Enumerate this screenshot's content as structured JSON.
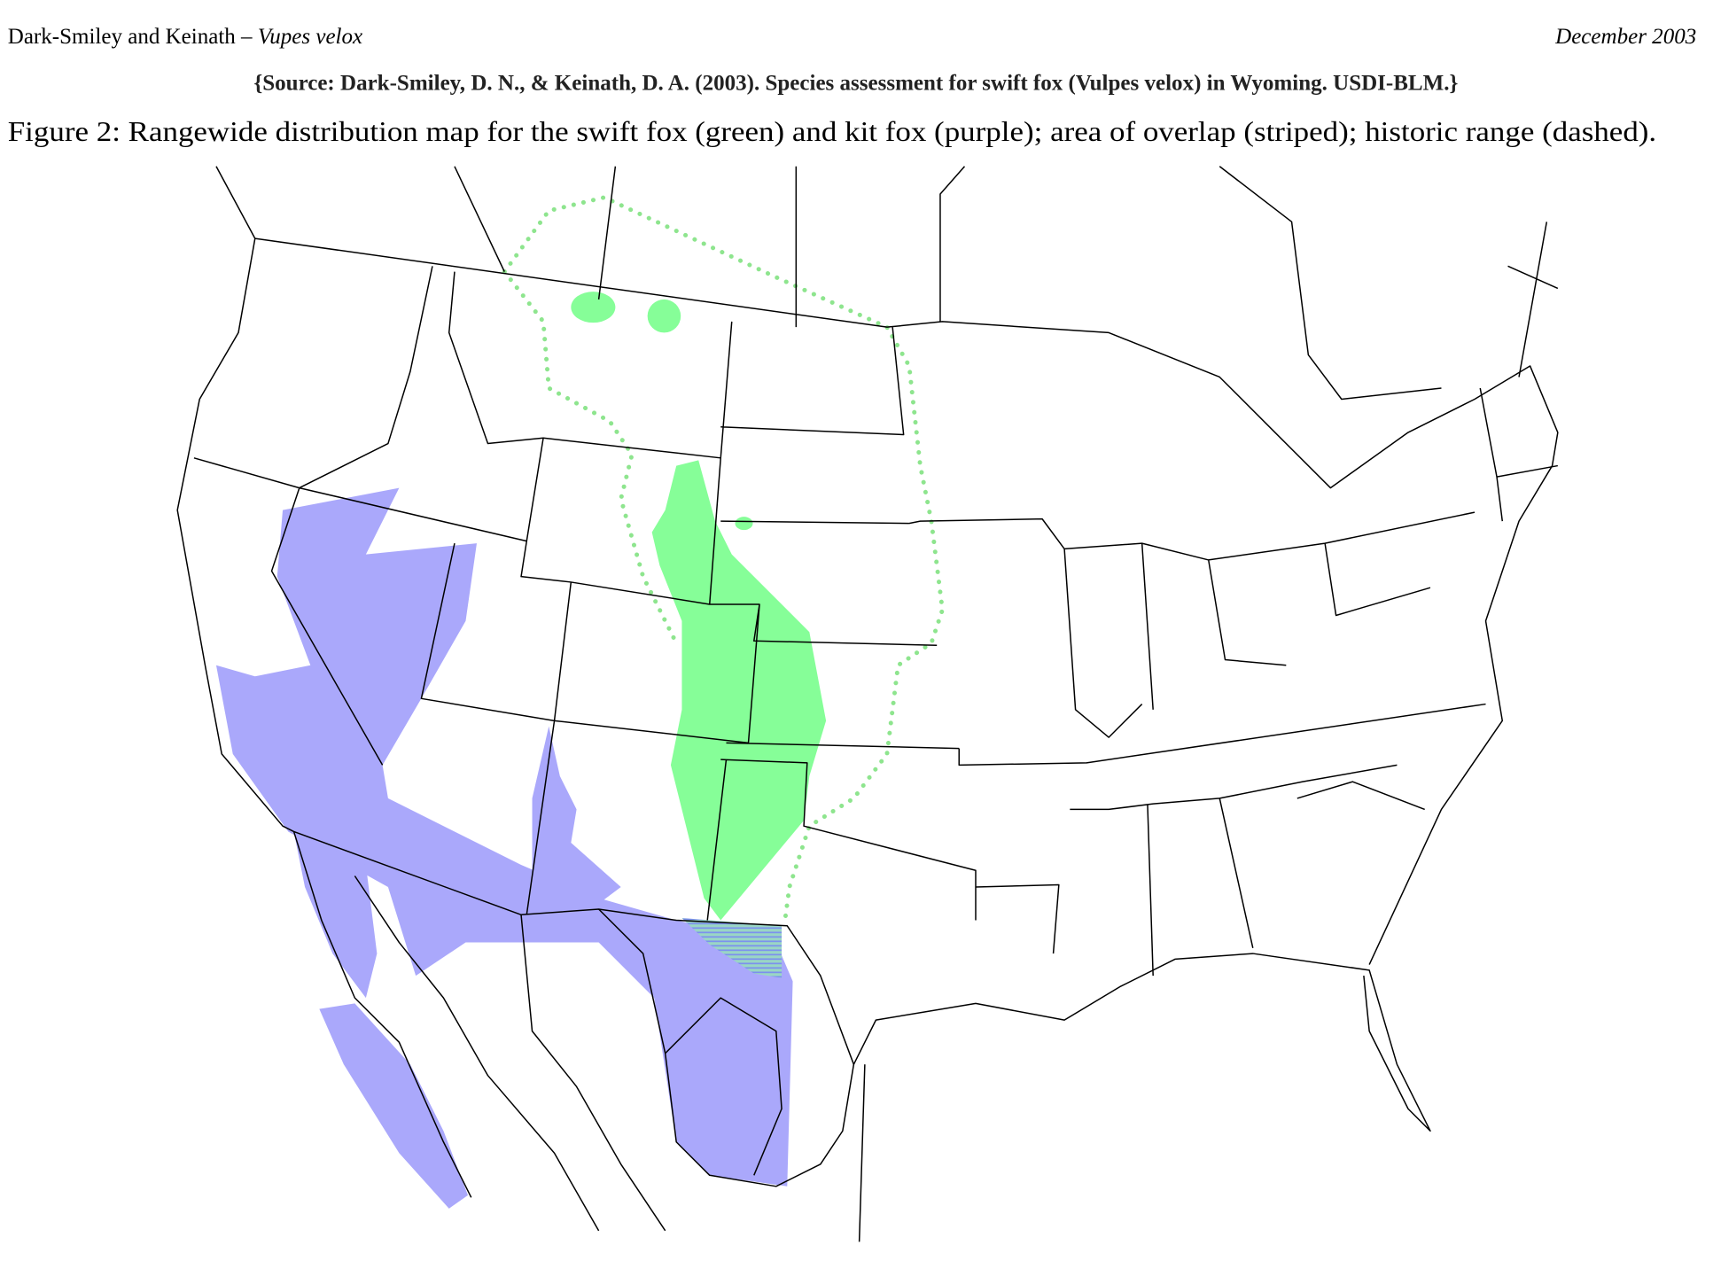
{
  "header": {
    "authors": "Dark-Smiley and Keinath –",
    "species": "Vupes velox",
    "date": "December 2003"
  },
  "source": "{Source: Dark-Smiley, D. N., & Keinath, D. A. (2003). Species assessment for swift fox (Vulpes velox) in Wyoming. USDI-BLM.}",
  "figure": {
    "caption": "Figure 2:  Rangewide distribution map for the swift fox (green) and kit fox (purple); area of overlap (striped); historic range (dashed)."
  }
}
